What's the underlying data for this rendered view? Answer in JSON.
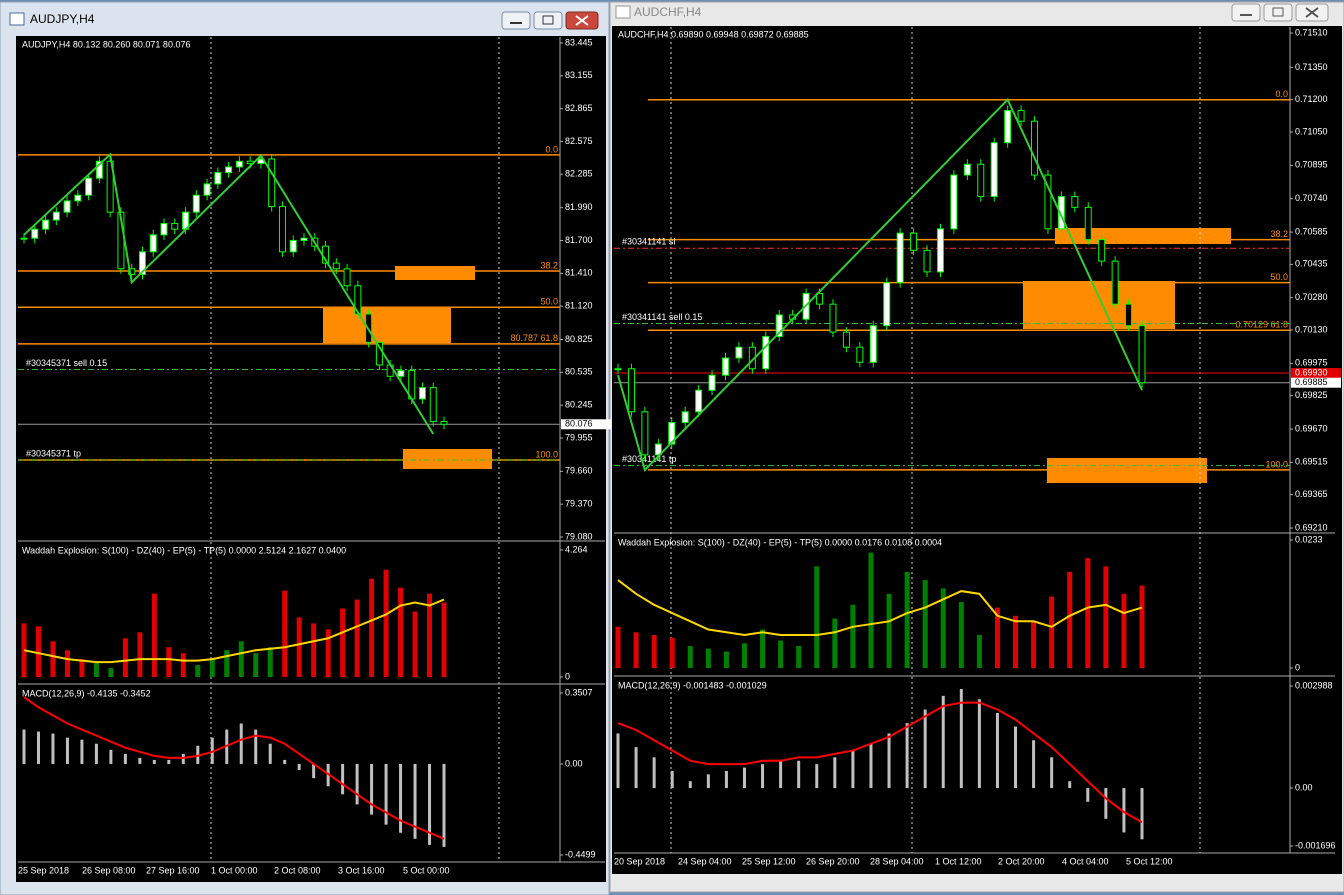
{
  "windows": [
    {
      "title": "AUDJPY,H4",
      "header": "AUDJPY,H4  80.132 80.260 80.071 80.076",
      "price_axis": {
        "lim": [
          79.08,
          83.445
        ],
        "ticks": [
          83.445,
          83.155,
          82.865,
          82.575,
          82.285,
          {
            "value": 81.99,
            "label": "81.990"
          },
          {
            "value": 81.7,
            "label": "81.700"
          },
          {
            "value": 81.41,
            "label": "81.410"
          },
          {
            "value": 81.12,
            "label": "81.120"
          },
          80.825,
          80.535,
          80.245,
          79.955,
          {
            "value": 79.66,
            "label": "79.660"
          },
          {
            "value": 79.37,
            "label": "79.370"
          },
          {
            "value": 79.08,
            "label": "79.080"
          }
        ]
      },
      "current_price": 80.076,
      "fib_levels": [
        {
          "label": "0.0",
          "price": 82.456
        },
        {
          "label": "38.2",
          "price": 81.43
        },
        {
          "label": "50.0",
          "price": 81.11
        },
        {
          "label": "80.787 61.8",
          "price": 80.787
        },
        {
          "label": "100.0",
          "price": 79.76
        }
      ],
      "orders": [
        {
          "label": "#30345371 sell 0.15",
          "price": 80.56
        },
        {
          "label": "#30345371 tp",
          "price": 79.76
        }
      ],
      "closes": [
        81.72,
        81.8,
        81.88,
        81.95,
        82.05,
        82.1,
        82.25,
        82.4,
        81.95,
        81.45,
        81.4,
        81.6,
        81.75,
        81.85,
        81.8,
        81.95,
        82.1,
        82.2,
        82.3,
        82.35,
        82.4,
        82.38,
        82.42,
        82.0,
        81.6,
        81.7,
        81.72,
        81.65,
        81.5,
        81.45,
        81.3,
        81.05,
        80.8,
        80.6,
        80.5,
        80.55,
        80.3,
        80.4,
        80.1,
        80.076
      ],
      "zigzag": {
        "index": [
          0,
          8,
          10,
          22,
          38
        ],
        "price": [
          81.75,
          82.46,
          81.33,
          82.45,
          79.99
        ]
      },
      "time_labels": [
        "25 Sep 2018",
        "26 Sep 08:00",
        "27 Sep 16:00",
        "1 Oct 00:00",
        "2 Oct 08:00",
        "3 Oct 16:00",
        "5 Oct 00:00"
      ],
      "waddah": {
        "header": "Waddah Explosion: S(100) - DZ(40) - EP(5) - TP(5) 0.0000 2.5124 2.1627 0.0400",
        "lim": [
          0,
          4.264
        ],
        "ticks": [
          4.264,
          0
        ],
        "series": [
          {
            "color": "#e00000",
            "values": [
              1.8,
              1.7,
              1.2,
              0.9,
              0.6,
              null,
              null,
              1.3,
              1.5,
              2.8,
              1.0,
              0.8,
              null,
              null,
              null,
              null,
              null,
              null,
              2.9,
              2.0,
              1.8,
              1.6,
              2.3,
              2.6,
              3.3,
              3.6,
              3.0,
              2.2,
              2.8,
              2.5
            ]
          },
          {
            "color": "#008000",
            "values": [
              null,
              null,
              null,
              null,
              null,
              0.5,
              0.3,
              null,
              null,
              null,
              null,
              null,
              0.4,
              0.6,
              0.9,
              1.2,
              0.8,
              1.0,
              null,
              null,
              null,
              null,
              null,
              null,
              null,
              null,
              null,
              null,
              null,
              null
            ]
          }
        ],
        "signal": {
          "color": "#ffd700",
          "values": [
            0.9,
            0.8,
            0.7,
            0.6,
            0.55,
            0.5,
            0.5,
            0.55,
            0.6,
            0.6,
            0.6,
            0.55,
            0.55,
            0.6,
            0.7,
            0.8,
            0.9,
            0.95,
            1.0,
            1.1,
            1.2,
            1.3,
            1.5,
            1.7,
            1.9,
            2.1,
            2.4,
            2.5,
            2.4,
            2.6
          ]
        }
      },
      "macd": {
        "header": "MACD(12,26,9) -0.4135 -0.3452",
        "lim": [
          -0.4499,
          0.3507
        ],
        "ticks": [
          0.3507,
          {
            "value": 0,
            "label": "0.00"
          },
          -0.4499
        ],
        "histogram": {
          "color": "#c0c0c0",
          "values": [
            0.17,
            0.16,
            0.15,
            0.13,
            0.12,
            0.1,
            0.07,
            0.05,
            0.03,
            0.02,
            0.02,
            0.05,
            0.09,
            0.13,
            0.17,
            0.2,
            0.17,
            0.1,
            0.02,
            -0.03,
            -0.07,
            -0.11,
            -0.15,
            -0.2,
            -0.25,
            -0.3,
            -0.34,
            -0.37,
            -0.4,
            -0.41
          ]
        },
        "signal": {
          "color": "#ff0000",
          "values": [
            0.33,
            0.28,
            0.24,
            0.2,
            0.17,
            0.14,
            0.11,
            0.08,
            0.06,
            0.04,
            0.03,
            0.03,
            0.04,
            0.06,
            0.09,
            0.12,
            0.14,
            0.13,
            0.1,
            0.05,
            0.0,
            -0.05,
            -0.1,
            -0.15,
            -0.2,
            -0.24,
            -0.28,
            -0.31,
            -0.34,
            -0.37
          ]
        }
      }
    },
    {
      "title": "AUDCHF,H4",
      "header": "AUDCHF,H4  0.69890 0.69948 0.69872 0.69885",
      "price_axis": {
        "lim": [
          0.6921,
          0.7151
        ],
        "ticks": [
          {
            "value": 0.7151,
            "label": "0.71510"
          },
          {
            "value": 0.7135,
            "label": "0.71350"
          },
          {
            "value": 0.712,
            "label": "0.71200"
          },
          {
            "value": 0.7105,
            "label": "0.71050"
          },
          0.70895,
          {
            "value": 0.7074,
            "label": "0.70740"
          },
          0.70585,
          0.70435,
          {
            "value": 0.7028,
            "label": "0.70280"
          },
          {
            "value": 0.7013,
            "label": "0.70130"
          },
          0.69975,
          0.69825,
          {
            "value": 0.6967,
            "label": "0.69670"
          },
          0.69515,
          0.69365,
          {
            "value": 0.6921,
            "label": "0.69210"
          }
        ]
      },
      "current_price": 0.69885,
      "bid_price": {
        "value": 0.6993,
        "label": "0.69930"
      },
      "fib_levels": [
        {
          "label": "0.0",
          "price": 0.712
        },
        {
          "label": "38.2",
          "price": 0.7055
        },
        {
          "label": "50.0",
          "price": 0.7035
        },
        {
          "label": "0.70129 61.8",
          "price": 0.70129
        },
        {
          "label": "100.0",
          "price": 0.6948
        }
      ],
      "orders": [
        {
          "label": "#30341141 sl",
          "price": 0.7051
        },
        {
          "label": "#30341141 sell 0.15",
          "price": 0.7016
        },
        {
          "label": "#30341141 tp",
          "price": 0.695
        }
      ],
      "closes": [
        0.6995,
        0.6975,
        0.6955,
        0.696,
        0.697,
        0.6975,
        0.6985,
        0.6992,
        0.7,
        0.7005,
        0.6995,
        0.701,
        0.702,
        0.7018,
        0.703,
        0.7025,
        0.7012,
        0.7005,
        0.6998,
        0.7015,
        0.7035,
        0.7058,
        0.705,
        0.704,
        0.706,
        0.7085,
        0.709,
        0.7075,
        0.71,
        0.7115,
        0.711,
        0.7085,
        0.706,
        0.7075,
        0.707,
        0.7055,
        0.7045,
        0.7025,
        0.7015,
        0.69885
      ],
      "zigzag": {
        "index": [
          0,
          2,
          29,
          39
        ],
        "price": [
          0.6992,
          0.6948,
          0.712,
          0.6985
        ]
      },
      "time_labels": [
        "20 Sep 2018",
        "24 Sep 04:00",
        "25 Sep 12:00",
        "26 Sep 20:00",
        "28 Sep 04:00",
        "1 Oct 12:00",
        "2 Oct 20:00",
        "4 Oct 04:00",
        "5 Oct 12:00"
      ],
      "waddah": {
        "header": "Waddah Explosion: S(100) - DZ(40) - EP(5) - TP(5) 0.0000 0.0176 0.0108 0.0004",
        "lim": [
          0,
          0.0233
        ],
        "ticks": [
          0.0233,
          0
        ],
        "series": [
          {
            "color": "#e00000",
            "values": [
              0.0075,
              0.0065,
              0.006,
              0.0055,
              null,
              null,
              null,
              null,
              null,
              null,
              null,
              null,
              null,
              null,
              null,
              null,
              null,
              null,
              null,
              null,
              null,
              0.011,
              0.0095,
              0.0085,
              0.013,
              0.0175,
              0.02,
              0.0185,
              0.0135,
              0.015
            ]
          },
          {
            "color": "#008000",
            "values": [
              null,
              null,
              null,
              null,
              0.004,
              0.0035,
              0.003,
              0.0045,
              0.007,
              0.005,
              0.004,
              0.0185,
              0.009,
              0.0115,
              0.021,
              0.0135,
              0.0175,
              0.016,
              0.0145,
              0.012,
              0.006,
              null,
              null,
              null,
              null,
              null,
              null,
              null,
              null,
              null
            ]
          }
        ],
        "signal": {
          "color": "#ffd700",
          "values": [
            0.016,
            0.0135,
            0.0115,
            0.01,
            0.0085,
            0.007,
            0.0065,
            0.006,
            0.0065,
            0.006,
            0.006,
            0.006,
            0.0065,
            0.0075,
            0.008,
            0.0085,
            0.01,
            0.011,
            0.0125,
            0.014,
            0.0135,
            0.0095,
            0.0085,
            0.0085,
            0.0075,
            0.0095,
            0.011,
            0.0115,
            0.01,
            0.011
          ]
        }
      },
      "macd": {
        "header": "MACD(12,26,9) -0.001483 -0.001029",
        "lim": [
          -0.001696,
          0.002988
        ],
        "ticks": [
          0.002988,
          {
            "value": 0,
            "label": "0.00"
          },
          -0.001696
        ],
        "histogram": {
          "color": "#c0c0c0",
          "values": [
            0.0016,
            0.0012,
            0.0009,
            0.0005,
            0.0002,
            0.0004,
            0.0005,
            0.0006,
            0.0007,
            0.0008,
            0.0008,
            0.0007,
            0.0009,
            0.0011,
            0.0013,
            0.0016,
            0.0019,
            0.0023,
            0.0027,
            0.0029,
            0.0026,
            0.0022,
            0.0018,
            0.0014,
            0.0009,
            0.0002,
            -0.0004,
            -0.0009,
            -0.0013,
            -0.0015
          ]
        },
        "signal": {
          "color": "#ff0000",
          "values": [
            0.0019,
            0.0017,
            0.0014,
            0.0011,
            0.0008,
            0.0007,
            0.0007,
            0.0007,
            0.0008,
            0.0008,
            0.0009,
            0.0009,
            0.001,
            0.0011,
            0.0013,
            0.0015,
            0.0018,
            0.0021,
            0.0024,
            0.0025,
            0.0025,
            0.0023,
            0.002,
            0.0016,
            0.0012,
            0.0007,
            0.0002,
            -0.0003,
            -0.0007,
            -0.001
          ]
        }
      }
    }
  ]
}
